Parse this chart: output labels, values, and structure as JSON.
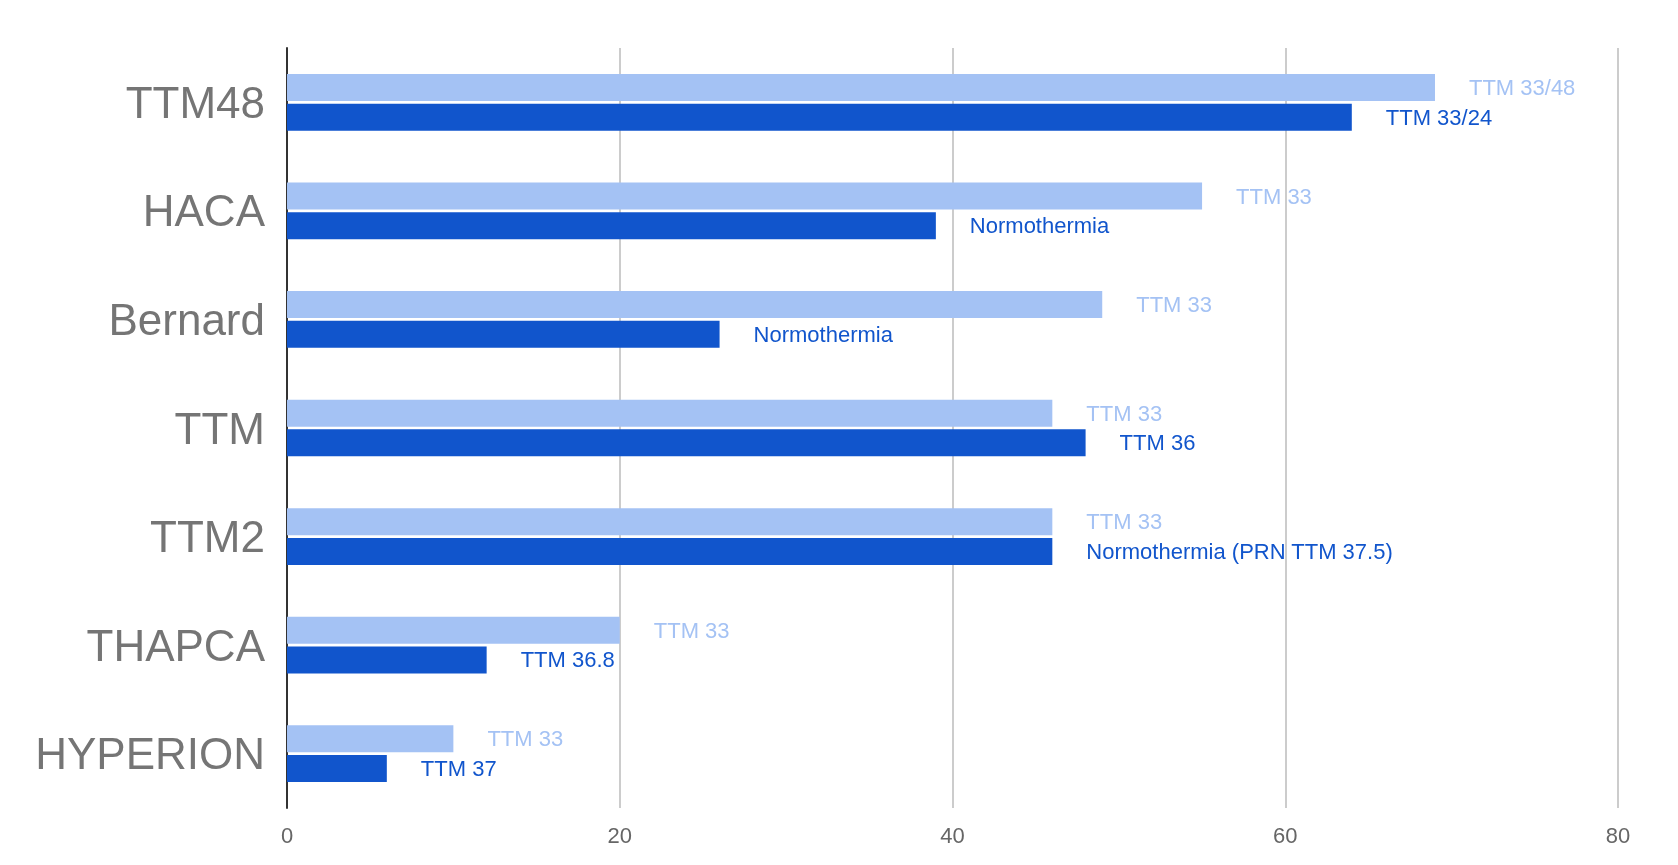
{
  "chart_data": {
    "type": "bar",
    "orientation": "horizontal",
    "categories": [
      "TTM48",
      "HACA",
      "Bernard",
      "TTM",
      "TTM2",
      "THAPCA",
      "HYPERION"
    ],
    "series": [
      {
        "color": "#a4c2f4",
        "values": [
          69,
          55,
          49,
          46,
          46,
          20,
          10
        ],
        "value_labels": [
          "TTM 33/48",
          "TTM 33",
          "TTM 33",
          "TTM 33",
          "TTM 33",
          "TTM 33",
          "TTM 33"
        ]
      },
      {
        "color": "#1155cc",
        "values": [
          64,
          39,
          26,
          48,
          46,
          12,
          6
        ],
        "value_labels": [
          "TTM 33/24",
          "Normothermia",
          "Normothermia",
          "TTM 36",
          "Normothermia (PRN TTM 37.5)",
          "TTM 36.8",
          "TTM 37"
        ]
      }
    ],
    "xlim": [
      0,
      80
    ],
    "xticks": [
      0,
      20,
      40,
      60,
      80
    ],
    "grid": "x"
  }
}
